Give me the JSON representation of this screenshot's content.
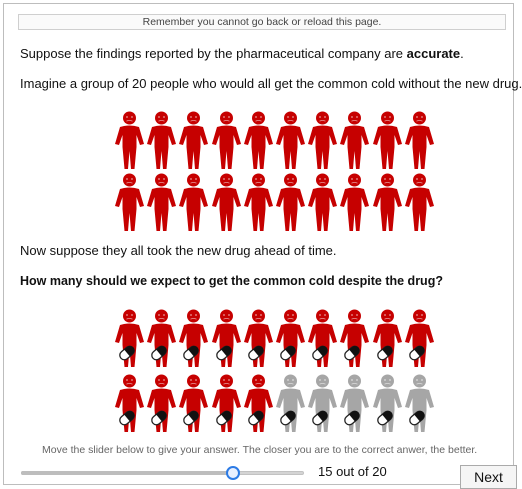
{
  "notice": "Remember you cannot go back or reload this page.",
  "intro": {
    "line1_prefix": "Suppose the findings reported by the pharmaceutical company are ",
    "line1_bold": "accurate",
    "line1_suffix": ".",
    "line2": "Imagine a group of 20 people who would all get the common cold without the new drug."
  },
  "after_drug_text": "Now suppose they all took the new drug ahead of time.",
  "question": "How many should we expect to get the common cold despite the drug?",
  "icon_array_before": {
    "total": 20,
    "sick": 20,
    "icon": "sick-person-icon"
  },
  "icon_array_after": {
    "total": 20,
    "sick": 15,
    "healthy": 5,
    "icon": "person-with-pill-icon"
  },
  "colors": {
    "sick": "#c60000",
    "healthy": "#a6a6a6",
    "accent": "#2c7be5"
  },
  "instruction": "Move the slider below to give your answer. The closer you are to the correct anwer, the better.",
  "slider": {
    "min": 0,
    "max": 20,
    "value": 15
  },
  "answer_text": "15 out of 20",
  "next_label": "Next"
}
